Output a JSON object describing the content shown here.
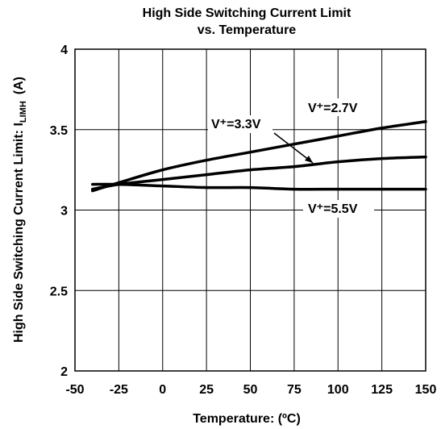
{
  "chart_data": {
    "type": "line",
    "title_line1": "High Side Switching Current Limit",
    "title_line2": "vs. Temperature",
    "xlabel": "Temperature: (ºC)",
    "ylabel_main": "High Side Switching Current Limit: I",
    "ylabel_sub": "LIMH",
    "ylabel_unit": "(A)",
    "xlim": [
      -50,
      150
    ],
    "ylim": [
      2,
      4
    ],
    "x_ticks": [
      "-50",
      "-25",
      "0",
      "25",
      "50",
      "75",
      "100",
      "125",
      "150"
    ],
    "y_ticks": [
      "2",
      "2.5",
      "3",
      "3.5",
      "4"
    ],
    "grid": true,
    "series": [
      {
        "name": "V⁺=2.7V",
        "x": [
          -40,
          -25,
          0,
          25,
          50,
          75,
          100,
          125,
          150
        ],
        "y": [
          3.12,
          3.17,
          3.25,
          3.31,
          3.36,
          3.41,
          3.46,
          3.51,
          3.55
        ]
      },
      {
        "name": "V⁺=3.3V",
        "x": [
          -40,
          -25,
          0,
          25,
          50,
          75,
          100,
          125,
          150
        ],
        "y": [
          3.13,
          3.16,
          3.19,
          3.22,
          3.25,
          3.27,
          3.3,
          3.32,
          3.33
        ]
      },
      {
        "name": "V⁺=5.5V",
        "x": [
          -40,
          -25,
          0,
          25,
          50,
          75,
          100,
          125,
          150
        ],
        "y": [
          3.16,
          3.16,
          3.15,
          3.14,
          3.14,
          3.13,
          3.13,
          3.13,
          3.13
        ]
      }
    ],
    "annotations": {
      "label_27": "V⁺=2.7V",
      "label_33": "V⁺=3.3V",
      "label_55": "V⁺=5.5V"
    }
  }
}
